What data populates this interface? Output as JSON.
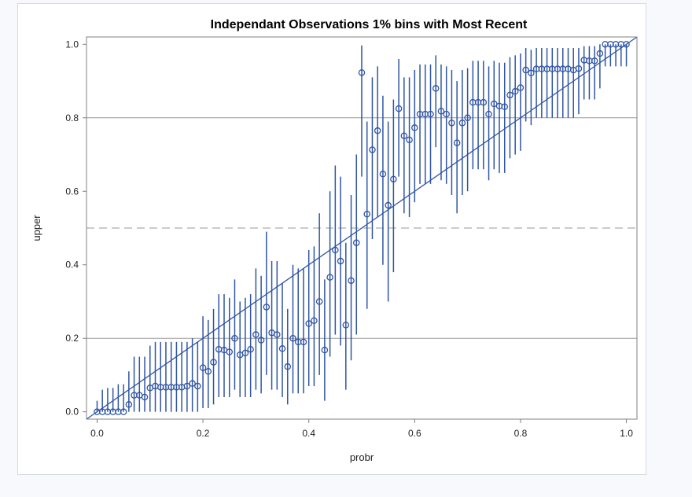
{
  "chart_data": {
    "type": "scatter",
    "title": "Independant Observations 1% bins with Most Recent",
    "xlabel": "probr",
    "ylabel": "upper",
    "xlim": [
      -0.02,
      1.02
    ],
    "ylim": [
      -0.02,
      1.02
    ],
    "xticks": [
      "0.0",
      "0.2",
      "0.4",
      "0.6",
      "0.8",
      "1.0"
    ],
    "yticks": [
      "0.0",
      "0.2",
      "0.4",
      "0.6",
      "0.8",
      "1.0"
    ],
    "reference_lines": {
      "solid_horizontal": [
        0.2,
        0.8
      ],
      "dashed_horizontal": [
        0.5
      ],
      "diagonal": [
        [
          -0.02,
          -0.02
        ],
        [
          1.02,
          1.02
        ]
      ]
    },
    "marker_color": "#2f55a4",
    "reference_color": "#9a9a9a",
    "x": [
      0.0,
      0.01,
      0.02,
      0.03,
      0.04,
      0.05,
      0.06,
      0.07,
      0.08,
      0.09,
      0.1,
      0.11,
      0.12,
      0.13,
      0.14,
      0.15,
      0.16,
      0.17,
      0.18,
      0.19,
      0.2,
      0.21,
      0.22,
      0.23,
      0.24,
      0.25,
      0.26,
      0.27,
      0.28,
      0.29,
      0.3,
      0.31,
      0.32,
      0.33,
      0.34,
      0.35,
      0.36,
      0.37,
      0.38,
      0.39,
      0.4,
      0.41,
      0.42,
      0.43,
      0.44,
      0.45,
      0.46,
      0.47,
      0.48,
      0.49,
      0.5,
      0.51,
      0.52,
      0.53,
      0.54,
      0.55,
      0.56,
      0.57,
      0.58,
      0.59,
      0.6,
      0.61,
      0.62,
      0.63,
      0.64,
      0.65,
      0.66,
      0.67,
      0.68,
      0.69,
      0.7,
      0.71,
      0.72,
      0.73,
      0.74,
      0.75,
      0.76,
      0.77,
      0.78,
      0.79,
      0.8,
      0.81,
      0.82,
      0.83,
      0.84,
      0.85,
      0.86,
      0.87,
      0.88,
      0.89,
      0.9,
      0.91,
      0.92,
      0.93,
      0.94,
      0.95,
      0.96,
      0.97,
      0.98,
      0.99,
      1.0
    ],
    "y": [
      0.0,
      0.0,
      0.0,
      0.0,
      0.0,
      0.0,
      0.02,
      0.045,
      0.045,
      0.04,
      0.065,
      0.07,
      0.067,
      0.067,
      0.067,
      0.067,
      0.067,
      0.07,
      0.077,
      0.07,
      0.12,
      0.11,
      0.135,
      0.17,
      0.168,
      0.163,
      0.2,
      0.155,
      0.16,
      0.17,
      0.21,
      0.195,
      0.285,
      0.215,
      0.21,
      0.172,
      0.123,
      0.2,
      0.19,
      0.19,
      0.24,
      0.248,
      0.3,
      0.168,
      0.366,
      0.44,
      0.41,
      0.236,
      0.357,
      0.46,
      0.923,
      0.538,
      0.713,
      0.765,
      0.647,
      0.562,
      0.633,
      0.825,
      0.751,
      0.74,
      0.773,
      0.81,
      0.81,
      0.81,
      0.88,
      0.818,
      0.81,
      0.786,
      0.732,
      0.786,
      0.8,
      0.842,
      0.842,
      0.842,
      0.81,
      0.838,
      0.832,
      0.83,
      0.862,
      0.872,
      0.882,
      0.93,
      0.922,
      0.933,
      0.933,
      0.933,
      0.933,
      0.933,
      0.933,
      0.933,
      0.93,
      0.934,
      0.957,
      0.955,
      0.955,
      0.975,
      1.0,
      1.0,
      1.0,
      1.0,
      1.0
    ],
    "lower": [
      0.0,
      0.0,
      0.0,
      0.0,
      0.0,
      0.0,
      0.0,
      0.0,
      0.0,
      0.0,
      0.0,
      0.0,
      0.0,
      0.0,
      0.0,
      0.0,
      0.0,
      0.0,
      0.0,
      0.0,
      0.01,
      0.01,
      0.02,
      0.04,
      0.04,
      0.04,
      0.06,
      0.04,
      0.04,
      0.04,
      0.06,
      0.05,
      0.1,
      0.06,
      0.06,
      0.04,
      0.02,
      0.05,
      0.05,
      0.05,
      0.07,
      0.07,
      0.1,
      0.03,
      0.15,
      0.21,
      0.18,
      0.06,
      0.14,
      0.21,
      0.64,
      0.28,
      0.47,
      0.53,
      0.4,
      0.3,
      0.38,
      0.64,
      0.54,
      0.53,
      0.57,
      0.62,
      0.62,
      0.62,
      0.72,
      0.63,
      0.62,
      0.59,
      0.54,
      0.59,
      0.6,
      0.66,
      0.66,
      0.66,
      0.63,
      0.66,
      0.65,
      0.65,
      0.69,
      0.7,
      0.71,
      0.79,
      0.78,
      0.8,
      0.8,
      0.8,
      0.8,
      0.8,
      0.8,
      0.8,
      0.8,
      0.81,
      0.85,
      0.85,
      0.85,
      0.88,
      0.94,
      0.94,
      0.94,
      0.94,
      0.94
    ],
    "upper": [
      0.03,
      0.06,
      0.065,
      0.065,
      0.075,
      0.075,
      0.11,
      0.15,
      0.15,
      0.15,
      0.18,
      0.19,
      0.19,
      0.19,
      0.19,
      0.19,
      0.19,
      0.19,
      0.2,
      0.19,
      0.26,
      0.25,
      0.28,
      0.32,
      0.32,
      0.31,
      0.36,
      0.3,
      0.31,
      0.32,
      0.39,
      0.37,
      0.49,
      0.41,
      0.41,
      0.35,
      0.28,
      0.4,
      0.39,
      0.39,
      0.44,
      0.45,
      0.54,
      0.36,
      0.6,
      0.67,
      0.64,
      0.46,
      0.59,
      0.7,
      0.997,
      0.79,
      0.91,
      0.94,
      0.86,
      0.79,
      0.85,
      0.96,
      0.91,
      0.91,
      0.93,
      0.945,
      0.945,
      0.945,
      0.97,
      0.945,
      0.94,
      0.93,
      0.9,
      0.93,
      0.935,
      0.955,
      0.955,
      0.955,
      0.94,
      0.955,
      0.95,
      0.95,
      0.965,
      0.97,
      0.975,
      0.99,
      0.985,
      0.99,
      0.99,
      0.99,
      0.99,
      0.99,
      0.99,
      0.99,
      0.99,
      0.99,
      0.995,
      0.995,
      0.995,
      1.0,
      1.0,
      1.0,
      1.0,
      1.0,
      1.0
    ]
  }
}
